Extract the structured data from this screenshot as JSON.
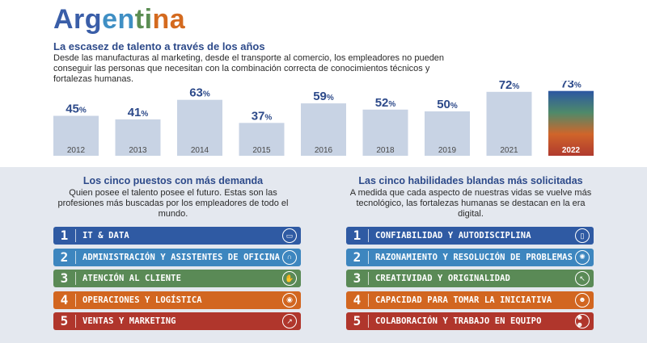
{
  "page": {
    "title_parts": [
      {
        "text": "Arg",
        "color": "#3a5ea8"
      },
      {
        "text": "en",
        "color": "#3f8fc4"
      },
      {
        "text": "ti",
        "color": "#5c8e54"
      },
      {
        "text": "na",
        "color": "#d46a1f"
      }
    ],
    "subtitle": "La escasez de talento a través de los años",
    "description": "Desde las manufacturas al marketing, desde el transporte al comercio, los empleadores no pueden conseguir las personas que necesitan con la combinación correcta de conocimientos técnicos y fortalezas humanas."
  },
  "chart_data": {
    "type": "bar",
    "categories": [
      "2012",
      "2013",
      "2014",
      "2015",
      "2016",
      "2018",
      "2019",
      "2021",
      "2022"
    ],
    "values": [
      45,
      41,
      63,
      37,
      59,
      52,
      50,
      72,
      73
    ],
    "value_labels": [
      "45%",
      "41%",
      "63%",
      "37%",
      "59%",
      "52%",
      "50%",
      "72%",
      "73%"
    ],
    "title": "La escasez de talento a través de los años",
    "ylim": [
      0,
      100
    ],
    "grid": false,
    "colors": {
      "bar": "#c8d3e4",
      "value_label": "#2d4a8a",
      "category_label": "#4a4a4a"
    },
    "highlight": {
      "category": "2022",
      "gradient": [
        "#2c57a2",
        "#4e8a6a",
        "#d0652a",
        "#b03a2e"
      ]
    }
  },
  "jobs": {
    "title": "Los cinco puestos con más demanda",
    "description": "Quien posee el talento posee el futuro. Estas son las profesiones más buscadas por los empleadores de todo el mundo.",
    "items": [
      {
        "num": "1",
        "label": "IT & DATA",
        "color": "#2f5aa3",
        "icon": "laptop-icon",
        "glyph": "▭"
      },
      {
        "num": "2",
        "label": "ADMINISTRACIÓN Y ASISTENTES DE OFICINA",
        "color": "#3d86bf",
        "icon": "headset-icon",
        "glyph": "∩"
      },
      {
        "num": "3",
        "label": "ATENCIÓN AL CLIENTE",
        "color": "#5a8a56",
        "icon": "handshake-icon",
        "glyph": "✋"
      },
      {
        "num": "4",
        "label": "OPERACIONES Y LOGÍSTICA",
        "color": "#d26620",
        "icon": "location-pin-icon",
        "glyph": "◉"
      },
      {
        "num": "5",
        "label": "VENTAS Y MARKETING",
        "color": "#b0362c",
        "icon": "growth-chart-icon",
        "glyph": "↗"
      }
    ]
  },
  "skills": {
    "title": "Las cinco habilidades blandas más  solicitadas",
    "description": "A medida que cada aspecto de nuestras vidas se vuelve más tecnológico, las fortalezas humanas se destacan en la era digital.",
    "items": [
      {
        "num": "1",
        "label": "CONFIABILIDAD Y AUTODISCIPLINA",
        "color": "#2f5aa3",
        "icon": "clipboard-icon",
        "glyph": "▯"
      },
      {
        "num": "2",
        "label": "RAZONAMIENTO Y RESOLUCIÓN DE PROBLEMAS",
        "color": "#3d86bf",
        "icon": "lightbulb-icon",
        "glyph": "✺"
      },
      {
        "num": "3",
        "label": "CREATIVIDAD Y ORIGINALIDAD",
        "color": "#5a8a56",
        "icon": "cursor-click-icon",
        "glyph": "↖"
      },
      {
        "num": "4",
        "label": "CAPACIDAD PARA TOMAR LA INICIATIVA",
        "color": "#d26620",
        "icon": "person-presenting-icon",
        "glyph": "☻"
      },
      {
        "num": "5",
        "label": "COLABORACIÓN Y TRABAJO EN EQUIPO",
        "color": "#b0362c",
        "icon": "team-icon",
        "glyph": "☻☻"
      }
    ]
  }
}
